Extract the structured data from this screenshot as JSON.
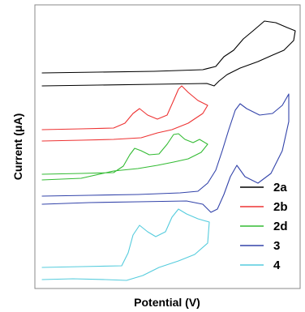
{
  "chart_data": {
    "type": "line",
    "title": "",
    "xlabel": "Potential (V)",
    "ylabel": "Current (μA)",
    "x_ticks": false,
    "y_ticks": false,
    "grid": false,
    "legend_position": "bottom-right",
    "series": [
      {
        "name": "2a",
        "color": "#000000"
      },
      {
        "name": "2b",
        "color": "#ee3333"
      },
      {
        "name": "2d",
        "color": "#33bb33"
      },
      {
        "name": "3",
        "color": "#3344aa"
      },
      {
        "name": "4",
        "color": "#55ccdd"
      }
    ]
  }
}
